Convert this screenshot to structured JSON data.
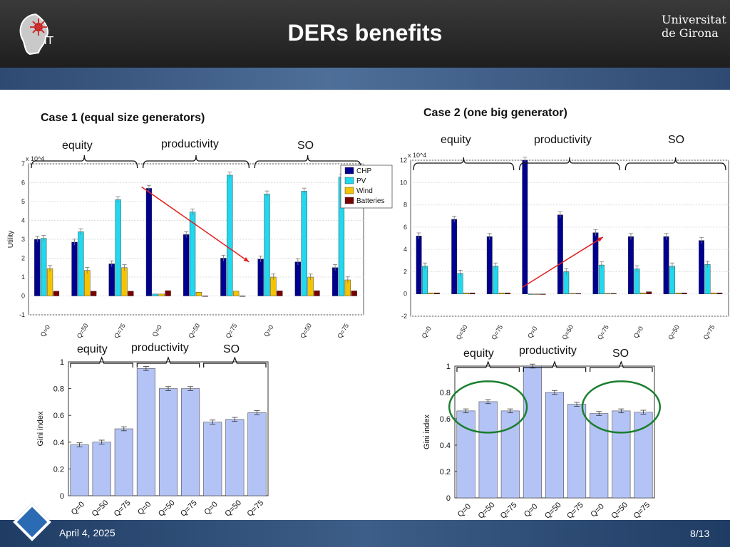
{
  "slide": {
    "title": "DERs benefits",
    "date": "April 4, 2025",
    "page": "8/13",
    "logo_left_text": "iT",
    "logo_right_lines": [
      "Universitat",
      "de Girona"
    ]
  },
  "case1": {
    "title": "Case 1 (equal size generators)",
    "group_labels_top": [
      "equity",
      "productivity",
      "SO"
    ],
    "group_labels_bottom": [
      "equity",
      "productivity",
      "SO"
    ]
  },
  "case2": {
    "title": "Case 2 (one big generator)",
    "group_labels_top": [
      "equity",
      "productivity",
      "SO"
    ],
    "group_labels_bottom": [
      "equity",
      "productivity",
      "SO"
    ]
  },
  "colors": {
    "CHP": "#00008f",
    "PV": "#22d8ee",
    "Wind": "#f5c400",
    "Batteries": "#7a0000",
    "gini_bar": "#b4c3f5",
    "arrow": "#e0201e",
    "ellipse": "#1a7f2e"
  },
  "chart_data": [
    {
      "id": "c1_utility",
      "type": "bar",
      "ylabel": "Utility",
      "exponent": "x 10^4",
      "ylim": [
        -1,
        7
      ],
      "yticks": [
        -1,
        0,
        1,
        2,
        3,
        4,
        5,
        6,
        7
      ],
      "categories": [
        "Q=0",
        "Q=50",
        "Q=75",
        "Q=0",
        "Q=50",
        "Q=75",
        "Q=0",
        "Q=50",
        "Q=75"
      ],
      "legend": "top-right",
      "series": [
        {
          "name": "CHP",
          "values": [
            3.0,
            2.85,
            1.7,
            5.7,
            3.25,
            2.0,
            1.95,
            1.8,
            1.5
          ]
        },
        {
          "name": "PV",
          "values": [
            3.05,
            3.4,
            5.1,
            0.1,
            4.45,
            6.4,
            5.4,
            5.55,
            6.3
          ]
        },
        {
          "name": "Wind",
          "values": [
            1.45,
            1.35,
            1.5,
            0.1,
            0.2,
            0.25,
            1.0,
            1.0,
            0.85
          ]
        },
        {
          "name": "Batteries",
          "values": [
            0.25,
            0.25,
            0.25,
            0.28,
            0.0,
            0.0,
            0.27,
            0.28,
            0.27
          ]
        }
      ]
    },
    {
      "id": "c2_utility",
      "type": "bar",
      "exponent": "x 10^4",
      "ylim": [
        -2,
        12
      ],
      "yticks": [
        -2,
        0,
        2,
        4,
        6,
        8,
        10,
        12
      ],
      "categories": [
        "Q=0",
        "Q=50",
        "Q=75",
        "Q=0",
        "Q=50",
        "Q=75",
        "Q=0",
        "Q=50",
        "Q=75"
      ],
      "series": [
        {
          "name": "CHP",
          "values": [
            5.2,
            6.7,
            5.15,
            12.0,
            7.1,
            5.5,
            5.15,
            5.15,
            4.8
          ]
        },
        {
          "name": "PV",
          "values": [
            2.5,
            1.85,
            2.5,
            0.0,
            2.0,
            2.6,
            2.25,
            2.5,
            2.65
          ]
        },
        {
          "name": "Wind",
          "values": [
            0.1,
            0.1,
            0.1,
            0.0,
            0.05,
            0.05,
            0.1,
            0.1,
            0.1
          ]
        },
        {
          "name": "Batteries",
          "values": [
            0.1,
            0.1,
            0.1,
            0.0,
            0.05,
            0.05,
            0.2,
            0.1,
            0.1
          ]
        }
      ]
    },
    {
      "id": "c1_gini",
      "type": "bar",
      "ylabel": "Gini index",
      "ylim": [
        0,
        1
      ],
      "yticks": [
        0,
        0.2,
        0.4,
        0.6,
        0.8,
        1
      ],
      "categories": [
        "Q=0",
        "Q=50",
        "Q=75",
        "Q=0",
        "Q=50",
        "Q=75",
        "Q=0",
        "Q=50",
        "Q=75"
      ],
      "values": [
        0.38,
        0.4,
        0.5,
        0.95,
        0.8,
        0.8,
        0.55,
        0.57,
        0.62
      ]
    },
    {
      "id": "c2_gini",
      "type": "bar",
      "ylabel": "Gini index",
      "ylim": [
        0,
        1
      ],
      "yticks": [
        0,
        0.2,
        0.4,
        0.6,
        0.8,
        1
      ],
      "categories": [
        "Q=0",
        "Q=50",
        "Q=75",
        "Q=0",
        "Q=50",
        "Q=75",
        "Q=0",
        "Q=50",
        "Q=75"
      ],
      "values": [
        0.66,
        0.73,
        0.66,
        1.0,
        0.8,
        0.71,
        0.64,
        0.66,
        0.65
      ]
    }
  ]
}
